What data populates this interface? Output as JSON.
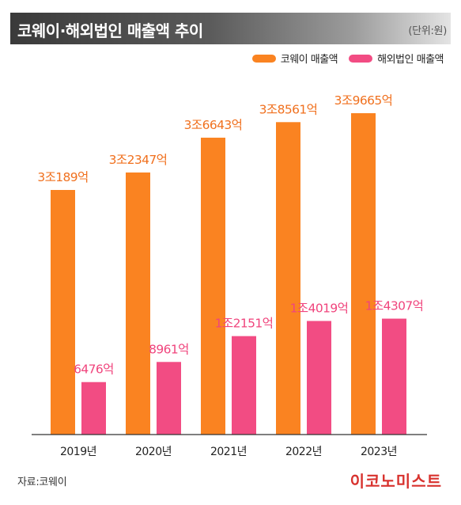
{
  "header": {
    "title": "코웨이·해외법인 매출액 추이",
    "unit": "(단위:원)"
  },
  "colors": {
    "series1": "#fa8321",
    "series2": "#f24c83",
    "label1": "#f0701e",
    "label2": "#f0457d",
    "axis": "#333333"
  },
  "chart_data": {
    "type": "bar",
    "categories": [
      "2019년",
      "2020년",
      "2021년",
      "2022년",
      "2023년"
    ],
    "series": [
      {
        "name": "코웨이 매출액",
        "values": [
          30189,
          32347,
          36643,
          38561,
          39665
        ],
        "labels": [
          "3조189억",
          "3조2347억",
          "3조6643억",
          "3조8561억",
          "3조9665억"
        ]
      },
      {
        "name": "해외법인 매출액",
        "values": [
          6476,
          8961,
          12151,
          14019,
          14307
        ],
        "labels": [
          "6476억",
          "8961억",
          "1조2151억",
          "1조4019억",
          "1조4307억"
        ]
      }
    ],
    "unit": "억원",
    "legend_position": "top-right",
    "grid": false
  },
  "footer": {
    "source": "자료:코웨이",
    "logo": "이코노미스트"
  }
}
